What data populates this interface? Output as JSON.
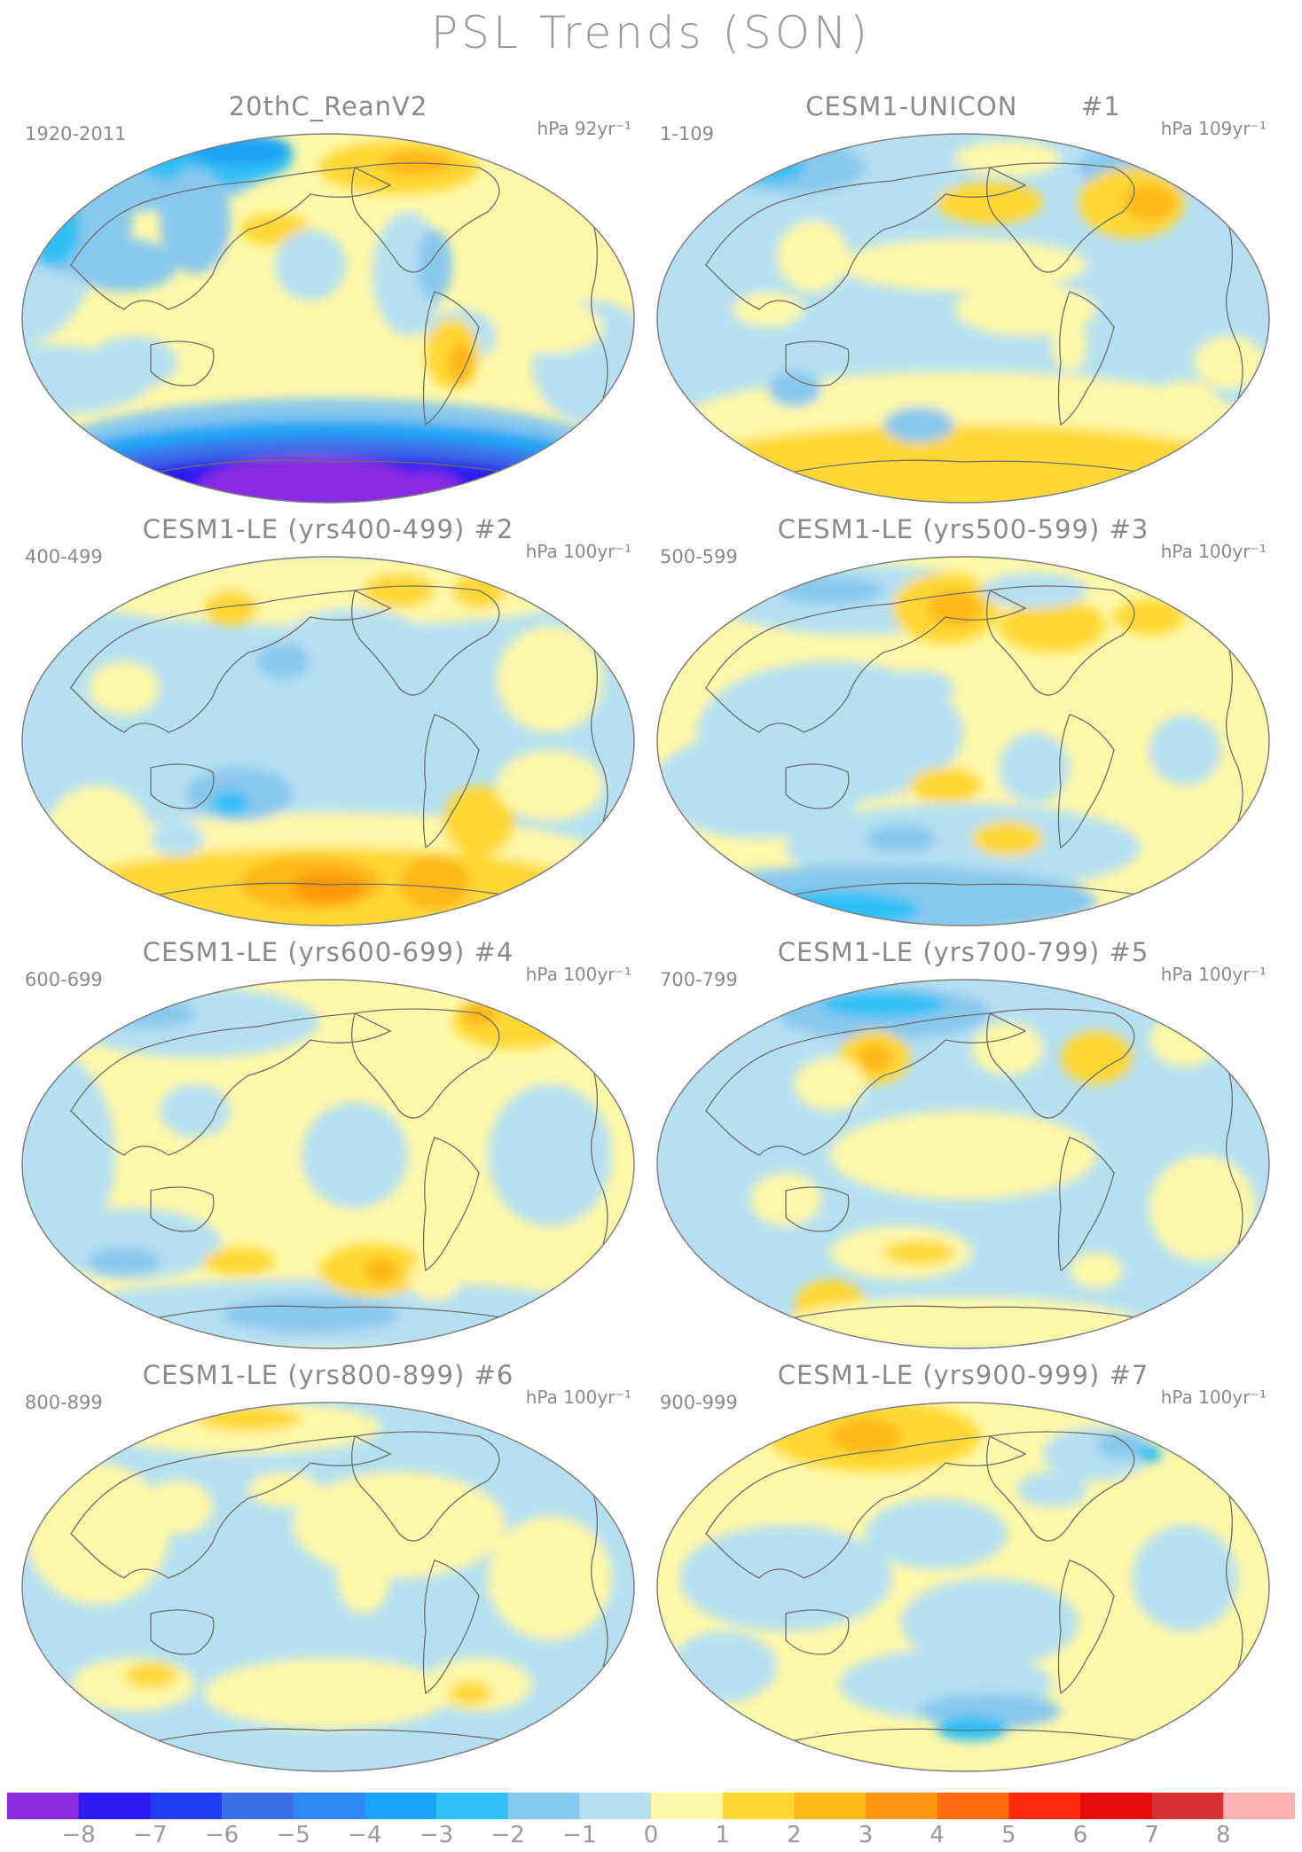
{
  "title": "PSL Trends (SON)",
  "panels": [
    {
      "title": "20thC_ReanV2",
      "range": "1920-2011",
      "units": "hPa 92yr⁻¹",
      "pattern": "reanalysis"
    },
    {
      "title": "CESM1-UNICON       #1",
      "range": "1-109",
      "units": "hPa 109yr⁻¹",
      "pattern": "unicon"
    },
    {
      "title": "CESM1-LE (yrs400-499) #2",
      "range": "400-499",
      "units": "hPa 100yr⁻¹",
      "pattern": "le2"
    },
    {
      "title": "CESM1-LE (yrs500-599) #3",
      "range": "500-599",
      "units": "hPa 100yr⁻¹",
      "pattern": "le3"
    },
    {
      "title": "CESM1-LE (yrs600-699) #4",
      "range": "600-699",
      "units": "hPa 100yr⁻¹",
      "pattern": "le4"
    },
    {
      "title": "CESM1-LE (yrs700-799) #5",
      "range": "700-799",
      "units": "hPa 100yr⁻¹",
      "pattern": "le5"
    },
    {
      "title": "CESM1-LE (yrs800-899) #6",
      "range": "800-899",
      "units": "hPa 100yr⁻¹",
      "pattern": "le6"
    },
    {
      "title": "CESM1-LE (yrs900-999) #7",
      "range": "900-999",
      "units": "hPa 100yr⁻¹",
      "pattern": "le7"
    }
  ],
  "colorbar": {
    "labels": [
      "−8",
      "−7",
      "−6",
      "−5",
      "−4",
      "−3",
      "−2",
      "−1",
      "0",
      "1",
      "2",
      "3",
      "4",
      "5",
      "6",
      "7",
      "8"
    ],
    "colors": [
      "#8a2be2",
      "#2b1bf0",
      "#1f3cf0",
      "#3c6ee6",
      "#2f88f0",
      "#1aa4f5",
      "#2fc0f5",
      "#88c8ee",
      "#b6e0f2",
      "#fff8a8",
      "#ffd836",
      "#ffb818",
      "#ff9810",
      "#ff6a10",
      "#ff2a10",
      "#e60a0a",
      "#d63030",
      "#ffb0b0"
    ]
  },
  "colors": {
    "ocean_base": "#b6e0f2",
    "coastline": "#6e6e6e",
    "border": "#808080"
  }
}
